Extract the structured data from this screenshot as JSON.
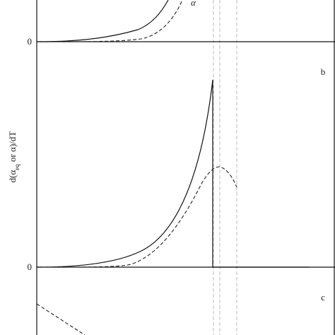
{
  "panels": [
    {
      "zero_label": "0",
      "curve_label": "α"
    },
    {
      "label": "b",
      "zero_label": "0",
      "y_label": [
        "d(α",
        "eq",
        " or α)/dT"
      ]
    },
    {
      "label": "c"
    }
  ]
}
